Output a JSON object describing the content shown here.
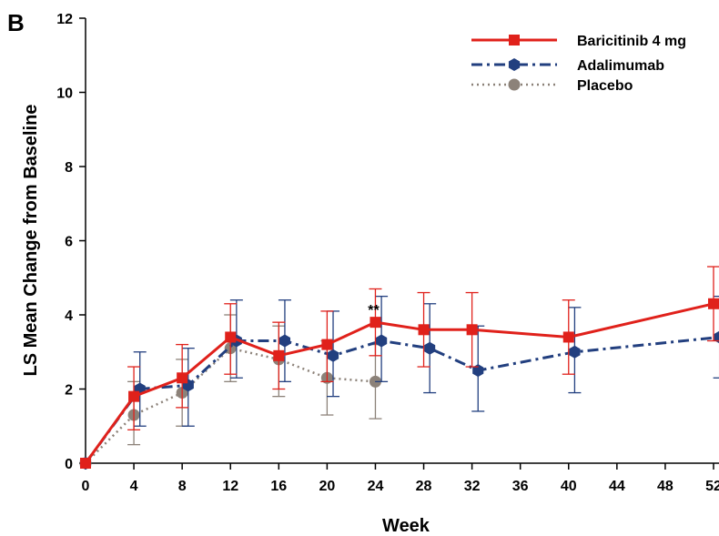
{
  "panel_label": "B",
  "chart_data": {
    "type": "line",
    "title": "",
    "xlabel": "Week",
    "ylabel": "LS Mean Change from Baseline",
    "xlim": [
      0,
      52
    ],
    "ylim": [
      0,
      12
    ],
    "x_ticks": [
      0,
      4,
      8,
      12,
      16,
      20,
      24,
      28,
      32,
      36,
      40,
      44,
      48,
      52
    ],
    "y_ticks": [
      0,
      2,
      4,
      6,
      8,
      10,
      12
    ],
    "grid": false,
    "legend_position": "top-right",
    "series": [
      {
        "name": "Baricitinib 4 mg",
        "color": "#e0211b",
        "line_style": "solid",
        "marker": "square",
        "points": [
          {
            "x": 0,
            "y": 0,
            "lo": 0,
            "hi": 0
          },
          {
            "x": 4,
            "y": 1.8,
            "lo": 0.9,
            "hi": 2.6
          },
          {
            "x": 8,
            "y": 2.3,
            "lo": 1.5,
            "hi": 3.2
          },
          {
            "x": 12,
            "y": 3.4,
            "lo": 2.4,
            "hi": 4.3
          },
          {
            "x": 16,
            "y": 2.9,
            "lo": 2.0,
            "hi": 3.8
          },
          {
            "x": 20,
            "y": 3.2,
            "lo": 2.2,
            "hi": 4.1
          },
          {
            "x": 24,
            "y": 3.8,
            "lo": 2.9,
            "hi": 4.7
          },
          {
            "x": 28,
            "y": 3.6,
            "lo": 2.6,
            "hi": 4.6
          },
          {
            "x": 32,
            "y": 3.6,
            "lo": 2.6,
            "hi": 4.6
          },
          {
            "x": 40,
            "y": 3.4,
            "lo": 2.4,
            "hi": 4.4
          },
          {
            "x": 52,
            "y": 4.3,
            "lo": 3.3,
            "hi": 5.3
          }
        ]
      },
      {
        "name": "Adalimumab",
        "color": "#223f7f",
        "line_style": "dashdot",
        "marker": "hexagon",
        "points": [
          {
            "x": 0,
            "y": 0,
            "lo": 0,
            "hi": 0
          },
          {
            "x": 4.5,
            "y": 2.0,
            "lo": 1.0,
            "hi": 3.0
          },
          {
            "x": 8.5,
            "y": 2.1,
            "lo": 1.0,
            "hi": 3.1
          },
          {
            "x": 12.5,
            "y": 3.3,
            "lo": 2.3,
            "hi": 4.4
          },
          {
            "x": 16.5,
            "y": 3.3,
            "lo": 2.2,
            "hi": 4.4
          },
          {
            "x": 20.5,
            "y": 2.9,
            "lo": 1.8,
            "hi": 4.1
          },
          {
            "x": 24.5,
            "y": 3.3,
            "lo": 2.2,
            "hi": 4.5
          },
          {
            "x": 28.5,
            "y": 3.1,
            "lo": 1.9,
            "hi": 4.3
          },
          {
            "x": 32.5,
            "y": 2.5,
            "lo": 1.4,
            "hi": 3.7
          },
          {
            "x": 40.5,
            "y": 3.0,
            "lo": 1.9,
            "hi": 4.2
          },
          {
            "x": 52.5,
            "y": 3.4,
            "lo": 2.3,
            "hi": 4.5
          }
        ]
      },
      {
        "name": "Placebo",
        "color": "#8c8279",
        "line_style": "dotted",
        "marker": "circle",
        "points": [
          {
            "x": 0,
            "y": 0,
            "lo": 0,
            "hi": 0
          },
          {
            "x": 4,
            "y": 1.3,
            "lo": 0.5,
            "hi": 2.2
          },
          {
            "x": 8,
            "y": 1.9,
            "lo": 1.0,
            "hi": 2.8
          },
          {
            "x": 12,
            "y": 3.1,
            "lo": 2.2,
            "hi": 4.0
          },
          {
            "x": 16,
            "y": 2.8,
            "lo": 1.8,
            "hi": 3.7
          },
          {
            "x": 20,
            "y": 2.3,
            "lo": 1.3,
            "hi": 3.3
          },
          {
            "x": 24,
            "y": 2.2,
            "lo": 1.2,
            "hi": 3.2
          }
        ]
      }
    ],
    "annotations": [
      {
        "text": "**",
        "x": 24,
        "y": 3.8
      }
    ]
  }
}
